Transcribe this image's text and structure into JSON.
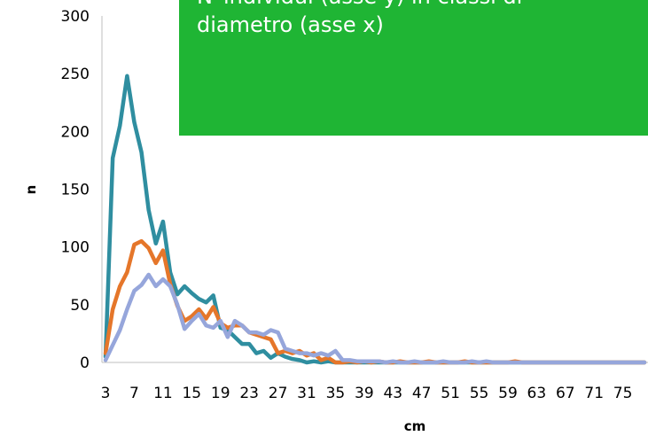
{
  "callout": {
    "text_line1": "N°individui (asse y) in classi di",
    "text_line2": "diametro (asse x)",
    "background_color": "#1fb534"
  },
  "chart_data": {
    "type": "line",
    "xlabel": "cm",
    "ylabel": "n",
    "ylim": [
      0,
      300
    ],
    "yticks": [
      0,
      50,
      100,
      150,
      200,
      250,
      300
    ],
    "x": [
      3,
      4,
      5,
      6,
      7,
      8,
      9,
      10,
      11,
      12,
      13,
      14,
      15,
      16,
      17,
      18,
      19,
      20,
      21,
      22,
      23,
      24,
      25,
      26,
      27,
      28,
      29,
      30,
      31,
      32,
      33,
      34,
      35,
      36,
      37,
      38,
      39,
      40,
      41,
      42,
      43,
      44,
      45,
      46,
      47,
      48,
      49,
      50,
      51,
      52,
      53,
      54,
      55,
      56,
      57,
      58,
      59,
      60,
      61,
      62,
      63,
      64,
      65,
      66,
      67,
      68,
      69,
      70,
      71,
      72,
      73,
      74,
      75,
      76,
      77,
      78
    ],
    "xtick_labels": [
      "3",
      "7",
      "11",
      "15",
      "19",
      "23",
      "27",
      "31",
      "35",
      "39",
      "43",
      "47",
      "51",
      "55",
      "59",
      "63",
      "67",
      "71",
      "75"
    ],
    "grid": false,
    "legend": "none",
    "series": [
      {
        "color": "#2f8ea0",
        "values": [
          5,
          177,
          205,
          248,
          208,
          182,
          132,
          103,
          122,
          78,
          59,
          66,
          60,
          55,
          52,
          58,
          30,
          28,
          22,
          16,
          16,
          8,
          10,
          4,
          8,
          5,
          3,
          2,
          0,
          1,
          0,
          1,
          0,
          0,
          0,
          0,
          0,
          0,
          0,
          0,
          0,
          0,
          0,
          0,
          0,
          0,
          0,
          0,
          0,
          0,
          0,
          0,
          0,
          0,
          0,
          0,
          0,
          0,
          0,
          0,
          0,
          0,
          0,
          0,
          0,
          0,
          0,
          0,
          0,
          0,
          0,
          0,
          0,
          0,
          0,
          0
        ]
      },
      {
        "color": "#e5762a",
        "values": [
          8,
          46,
          66,
          78,
          102,
          105,
          99,
          86,
          97,
          68,
          49,
          36,
          40,
          46,
          38,
          48,
          34,
          30,
          32,
          32,
          26,
          24,
          22,
          20,
          8,
          10,
          8,
          10,
          6,
          8,
          2,
          4,
          0,
          0,
          1,
          0,
          1,
          0,
          1,
          0,
          0,
          1,
          0,
          0,
          0,
          1,
          0,
          0,
          0,
          0,
          1,
          0,
          0,
          0,
          0,
          0,
          0,
          1,
          0,
          0,
          0,
          0,
          0,
          0,
          0,
          0,
          0,
          0,
          0,
          0,
          0,
          0,
          0,
          0,
          0,
          0
        ]
      },
      {
        "color": "#96a6db",
        "values": [
          2,
          15,
          28,
          46,
          62,
          67,
          76,
          66,
          72,
          66,
          50,
          29,
          36,
          42,
          32,
          30,
          36,
          22,
          36,
          32,
          26,
          26,
          24,
          28,
          26,
          12,
          10,
          8,
          8,
          6,
          8,
          6,
          10,
          2,
          2,
          1,
          1,
          1,
          1,
          0,
          1,
          0,
          0,
          1,
          0,
          0,
          0,
          1,
          0,
          0,
          0,
          1,
          0,
          1,
          0,
          0,
          0,
          0,
          0,
          0,
          0,
          0,
          0,
          0,
          0,
          0,
          0,
          0,
          0,
          0,
          0,
          0,
          0,
          0,
          0,
          0
        ]
      }
    ]
  }
}
